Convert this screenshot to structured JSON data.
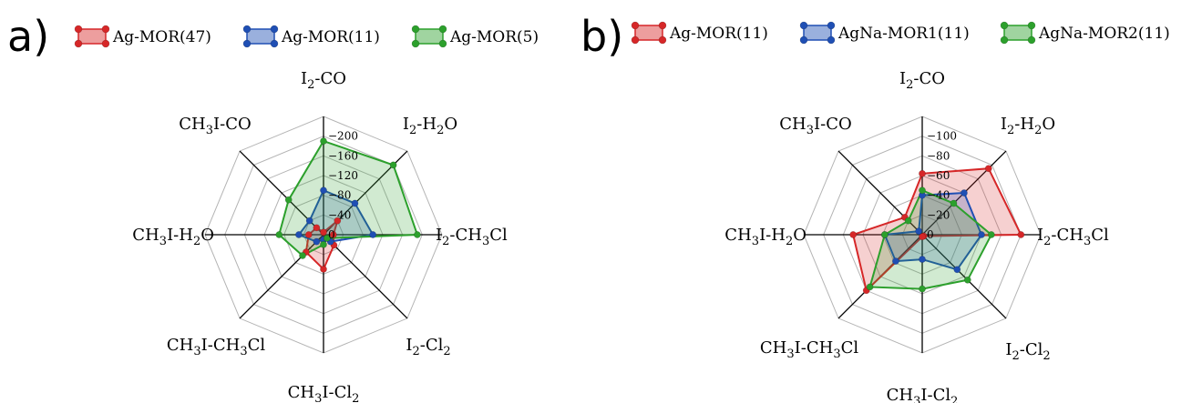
{
  "chart_data": [
    {
      "type": "radar",
      "panel_label": "a)",
      "axes": [
        {
          "pre": "I",
          "sub": "2",
          "post": "-CO"
        },
        {
          "pre": "I",
          "sub": "2",
          "post": "-H",
          "sub2": "2",
          "post2": "O"
        },
        {
          "pre": "I",
          "sub": "2",
          "post": "-CH",
          "sub2": "3",
          "post2": "Cl"
        },
        {
          "pre": "I",
          "sub": "2",
          "post": "-Cl",
          "sub2": "2",
          "post2": ""
        },
        {
          "pre": "CH",
          "sub": "3",
          "post": "I-Cl",
          "sub2": "2",
          "post2": ""
        },
        {
          "pre": "CH",
          "sub": "3",
          "post": "I-CH",
          "sub2": "3",
          "post2": "Cl"
        },
        {
          "pre": "CH",
          "sub": "3",
          "post": "I-H",
          "sub2": "2",
          "post2": "O"
        },
        {
          "pre": "CH",
          "sub": "3",
          "post": "I-CO",
          "sub2": "",
          "post2": ""
        }
      ],
      "radial_ticks": [
        "0",
        "−40",
        "−80",
        "−120",
        "−160",
        "−200"
      ],
      "rmax": 240,
      "grid": true,
      "legend_position": "top",
      "series": [
        {
          "name": "Ag-MOR(47)",
          "color": "#d62728",
          "values": [
            -5,
            -40,
            -20,
            -30,
            -70,
            -50,
            -30,
            -20
          ]
        },
        {
          "name": "Ag-MOR(11)",
          "color": "#1f4fb4",
          "values": [
            -90,
            -90,
            -100,
            -20,
            -10,
            -20,
            -50,
            -40
          ]
        },
        {
          "name": "Ag-MOR(5)",
          "color": "#2ca02c",
          "values": [
            -190,
            -200,
            -190,
            -10,
            -20,
            -60,
            -90,
            -100
          ]
        }
      ]
    },
    {
      "type": "radar",
      "panel_label": "b)",
      "axes": [
        {
          "pre": "I",
          "sub": "2",
          "post": "-CO"
        },
        {
          "pre": "I",
          "sub": "2",
          "post": "-H",
          "sub2": "2",
          "post2": "O"
        },
        {
          "pre": "I",
          "sub": "2",
          "post": "-CH",
          "sub2": "3",
          "post2": "Cl"
        },
        {
          "pre": "I",
          "sub": "2",
          "post": "-Cl",
          "sub2": "2",
          "post2": ""
        },
        {
          "pre": "CH",
          "sub": "3",
          "post": "I-Cl",
          "sub2": "2",
          "post2": ""
        },
        {
          "pre": "CH",
          "sub": "3",
          "post": "I-CH",
          "sub2": "3",
          "post2": "Cl"
        },
        {
          "pre": "CH",
          "sub": "3",
          "post": "I-H",
          "sub2": "2",
          "post2": "O"
        },
        {
          "pre": "CH",
          "sub": "3",
          "post": "I-CO",
          "sub2": "",
          "post2": ""
        }
      ],
      "radial_ticks": [
        "0",
        "−20",
        "−40",
        "−60",
        "−80",
        "−100"
      ],
      "rmax": 120,
      "grid": true,
      "legend_position": "top",
      "series": [
        {
          "name": "Ag-MOR(11)",
          "color": "#d62728",
          "values": [
            -62,
            -95,
            -100,
            -2,
            -2,
            -80,
            -70,
            -25
          ]
        },
        {
          "name": "AgNa-MOR1(11)",
          "color": "#1f4fb4",
          "values": [
            -40,
            -60,
            -60,
            -50,
            -25,
            -38,
            -38,
            -5
          ]
        },
        {
          "name": "AgNa-MOR2(11)",
          "color": "#2ca02c",
          "values": [
            -45,
            -45,
            -70,
            -65,
            -55,
            -75,
            -38,
            -20
          ]
        }
      ]
    }
  ]
}
